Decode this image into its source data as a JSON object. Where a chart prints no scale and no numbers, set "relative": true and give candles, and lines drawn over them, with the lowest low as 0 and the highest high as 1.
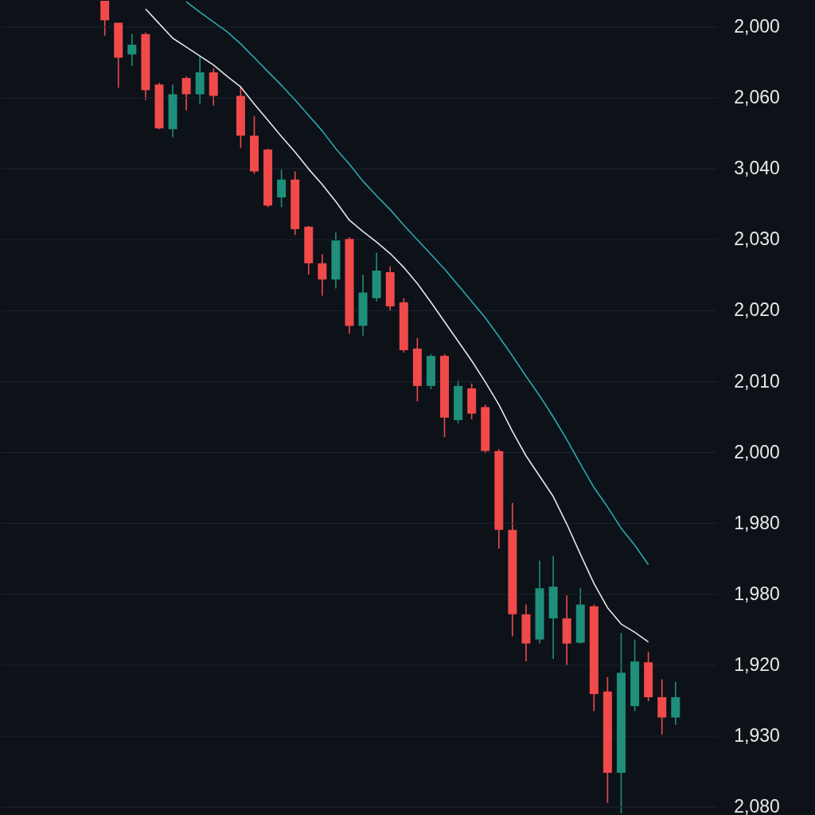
{
  "chart_data": {
    "type": "candlestick",
    "relative": true,
    "categories": [
      null,
      null,
      null,
      null,
      null,
      null,
      null,
      null,
      null,
      null,
      null,
      null,
      null,
      null,
      null,
      null,
      null,
      null,
      null,
      null,
      null,
      null,
      null,
      null,
      null,
      null,
      null,
      null,
      null,
      null,
      null,
      null,
      null,
      null,
      null,
      null,
      null,
      null,
      null,
      null,
      null,
      null,
      null
    ],
    "ohlc": [
      [
        1.0,
        1.0,
        0.957,
        0.976
      ],
      [
        0.973,
        0.973,
        0.893,
        0.93
      ],
      [
        0.934,
        0.959,
        0.92,
        0.946
      ],
      [
        0.959,
        0.961,
        0.878,
        0.89
      ],
      [
        0.897,
        0.899,
        0.842,
        0.843
      ],
      [
        0.842,
        0.897,
        0.832,
        0.885
      ],
      [
        0.905,
        0.907,
        0.865,
        0.885
      ],
      [
        0.885,
        0.932,
        0.873,
        0.912
      ],
      [
        0.912,
        0.917,
        0.871,
        0.883
      ],
      null,
      [
        0.883,
        0.895,
        0.819,
        0.834
      ],
      [
        0.834,
        0.858,
        0.787,
        0.79
      ],
      [
        0.817,
        0.818,
        0.746,
        0.748
      ],
      [
        0.758,
        0.793,
        0.746,
        0.78
      ],
      [
        0.78,
        0.79,
        0.712,
        0.719
      ],
      [
        0.722,
        0.723,
        0.663,
        0.677
      ],
      [
        0.677,
        0.688,
        0.637,
        0.657
      ],
      [
        0.657,
        0.715,
        0.646,
        0.705
      ],
      [
        0.707,
        0.709,
        0.59,
        0.6
      ],
      [
        0.6,
        0.663,
        0.588,
        0.641
      ],
      [
        0.634,
        0.69,
        0.63,
        0.668
      ],
      [
        0.666,
        0.673,
        0.619,
        0.624
      ],
      [
        0.629,
        0.634,
        0.567,
        0.57
      ],
      [
        0.572,
        0.585,
        0.507,
        0.526
      ],
      [
        0.526,
        0.565,
        0.522,
        0.563
      ],
      [
        0.563,
        0.565,
        0.463,
        0.487
      ],
      [
        0.484,
        0.533,
        0.48,
        0.526
      ],
      [
        0.523,
        0.529,
        0.485,
        0.492
      ],
      [
        0.5,
        0.503,
        0.443,
        0.446
      ],
      [
        0.446,
        0.448,
        0.326,
        0.349
      ],
      [
        0.349,
        0.382,
        0.218,
        0.245
      ],
      [
        0.245,
        0.257,
        0.187,
        0.209
      ],
      [
        0.214,
        0.311,
        0.209,
        0.277
      ],
      [
        0.24,
        0.317,
        0.19,
        0.279
      ],
      [
        0.24,
        0.268,
        0.182,
        0.209
      ],
      [
        0.21,
        0.277,
        0.209,
        0.257
      ],
      [
        0.255,
        0.257,
        0.126,
        0.147
      ],
      [
        0.15,
        0.168,
        0.013,
        0.05
      ],
      [
        0.05,
        0.222,
        0.0,
        0.173
      ],
      [
        0.132,
        0.214,
        0.126,
        0.187
      ],
      [
        0.186,
        0.199,
        0.138,
        0.143
      ],
      [
        0.143,
        0.165,
        0.097,
        0.118
      ],
      [
        0.118,
        0.162,
        0.109,
        0.143
      ]
    ],
    "colors": [
      "#f04a4a",
      "#f04a4a",
      "#1e8f7a",
      "#f04a4a",
      "#f04a4a",
      "#1e8f7a",
      "#f04a4a",
      "#1e8f7a",
      "#f04a4a",
      null,
      "#f04a4a",
      "#f04a4a",
      "#f04a4a",
      "#1e8f7a",
      "#f04a4a",
      "#f04a4a",
      "#f04a4a",
      "#1e8f7a",
      "#f04a4a",
      "#1e8f7a",
      "#1e8f7a",
      "#f04a4a",
      "#f04a4a",
      "#f04a4a",
      "#1e8f7a",
      "#f04a4a",
      "#1e8f7a",
      "#f04a4a",
      "#f04a4a",
      "#f04a4a",
      "#f04a4a",
      "#f04a4a",
      "#1e8f7a",
      "#1e8f7a",
      "#f04a4a",
      "#1e8f7a",
      "#f04a4a",
      "#f04a4a",
      "#1e8f7a",
      "#1e8f7a",
      "#f04a4a",
      "#f04a4a",
      "#1e8f7a"
    ],
    "series": [
      {
        "type": "line",
        "color": "#e6e6e6",
        "values": [
          null,
          null,
          null,
          0.99,
          0.972,
          0.954,
          0.943,
          0.932,
          0.921,
          0.907,
          0.894,
          0.873,
          0.853,
          0.833,
          0.814,
          0.793,
          0.774,
          0.753,
          0.73,
          0.716,
          0.703,
          0.689,
          0.672,
          0.652,
          0.629,
          0.605,
          0.581,
          0.557,
          0.531,
          0.503,
          0.47,
          0.44,
          0.415,
          0.39,
          0.356,
          0.319,
          0.283,
          0.253,
          0.233,
          0.223,
          0.211,
          null,
          null
        ]
      },
      {
        "type": "line",
        "color": "#2aa9b0",
        "values": [
          null,
          null,
          null,
          null,
          null,
          null,
          0.999,
          0.986,
          0.974,
          0.962,
          0.947,
          0.93,
          0.913,
          0.896,
          0.878,
          0.859,
          0.84,
          0.818,
          0.799,
          0.778,
          0.76,
          0.743,
          0.724,
          0.706,
          0.688,
          0.67,
          0.65,
          0.63,
          0.61,
          0.587,
          0.563,
          0.538,
          0.514,
          0.488,
          0.46,
          0.43,
          0.401,
          0.377,
          0.351,
          0.33,
          0.306,
          null,
          null
        ]
      }
    ],
    "annotations": [
      "2,000",
      "2,060",
      "3,040",
      "2,030",
      "2,020",
      "2,010",
      "2,000",
      "1,980",
      "1,980",
      "1,920",
      "1,930",
      "2,080"
    ],
    "grid": "y"
  }
}
